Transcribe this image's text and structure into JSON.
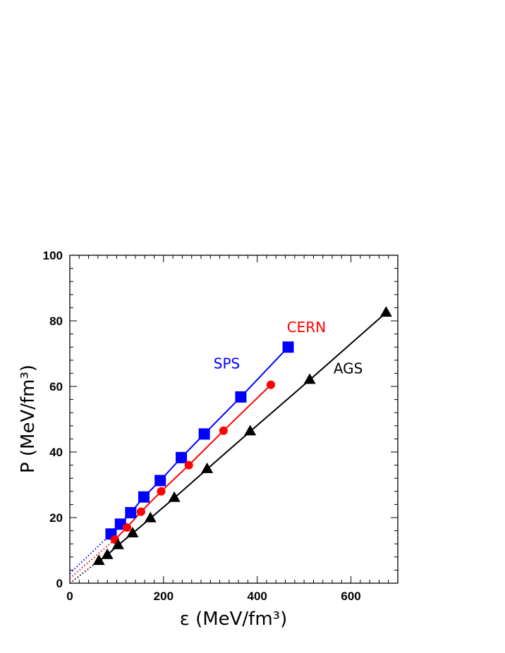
{
  "chart_data": {
    "type": "scatter",
    "title": "",
    "xlabel": "ε  (MeV/fm³)",
    "ylabel": "P  (MeV/fm³)",
    "xlim": [
      0,
      700
    ],
    "ylim": [
      0,
      100
    ],
    "x_ticks": [
      0,
      200,
      400,
      600
    ],
    "y_ticks": [
      0,
      20,
      40,
      60,
      80,
      100
    ],
    "x_tick_labels": [
      "0",
      "200",
      "400",
      "600"
    ],
    "y_tick_labels": [
      "0",
      "20",
      "40",
      "60",
      "80",
      "100"
    ],
    "grid": false,
    "legend": "inline labels next to series",
    "series": [
      {
        "name": "SPS",
        "color": "#0000ff",
        "marker": "square",
        "x": [
          88,
          108,
          130,
          158,
          193,
          238,
          287,
          365,
          466
        ],
        "y": [
          15.0,
          18.0,
          21.5,
          26.3,
          31.3,
          38.3,
          45.5,
          56.8,
          72.0
        ],
        "extrapolation": {
          "x": [
            0,
            88
          ],
          "y": [
            3.0,
            15.0
          ],
          "style": "dotted"
        }
      },
      {
        "name": "CERN",
        "color": "#ff0000",
        "marker": "circle",
        "x": [
          96,
          122,
          152,
          195,
          254,
          328,
          429
        ],
        "y": [
          13.3,
          17.0,
          21.8,
          28.0,
          36.0,
          46.5,
          60.5
        ],
        "extrapolation": {
          "x": [
            0,
            96
          ],
          "y": [
            1.5,
            13.3
          ],
          "style": "dotted"
        }
      },
      {
        "name": "AGS",
        "color": "#000000",
        "marker": "triangle",
        "x": [
          62,
          80,
          103,
          134,
          172,
          223,
          293,
          385,
          512,
          675
        ],
        "y": [
          6.8,
          8.6,
          11.6,
          15.2,
          19.8,
          26.0,
          34.8,
          46.3,
          62.0,
          82.5
        ],
        "extrapolation": {
          "x": [
            0,
            62
          ],
          "y": [
            0.0,
            6.8
          ],
          "style": "dotted"
        }
      }
    ],
    "annotations": [
      {
        "text": "SPS",
        "color": "#0000ff",
        "x": 335,
        "y": 65.5
      },
      {
        "text": "CERN",
        "color": "#ff0000",
        "x": 505,
        "y": 76.6
      },
      {
        "text": "AGS",
        "color": "#000000",
        "x": 594,
        "y": 64.0
      }
    ]
  }
}
